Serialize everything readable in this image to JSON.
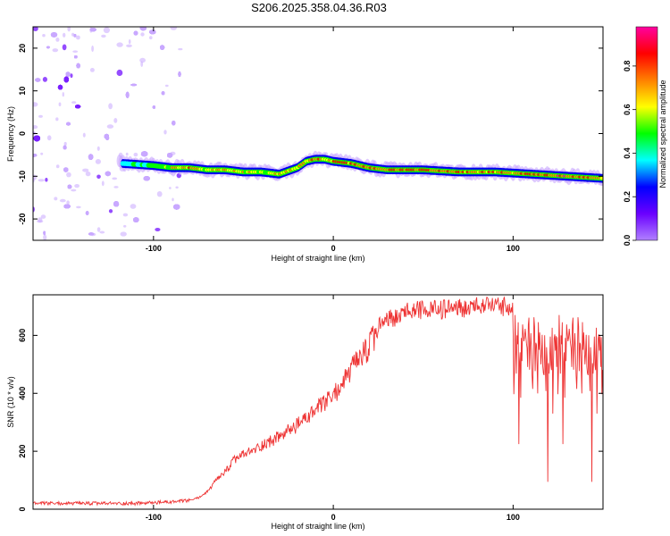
{
  "title": "S206.2025.358.04.36.R03",
  "chart_data": [
    {
      "type": "heatmap",
      "xlabel": "Height of straight line (km)",
      "ylabel": "Frequency (Hz)",
      "xlim": [
        -167,
        150
      ],
      "ylim": [
        -25,
        25
      ],
      "xticks": [
        -100,
        0,
        100
      ],
      "yticks": [
        -20,
        -10,
        0,
        10,
        20
      ],
      "colorbar": {
        "label": "Normalized spectral amplitude",
        "range": [
          0.0,
          0.98
        ],
        "ticks": [
          0.0,
          0.2,
          0.4,
          0.6,
          0.8
        ],
        "tick_labels": [
          "0.0",
          "0.2",
          "0.4",
          "0.6",
          "0.8"
        ],
        "colormap": [
          "#b080ff",
          "#6a00ff",
          "#0000ff",
          "#00ffff",
          "#00ff00",
          "#ffff00",
          "#ff8000",
          "#ff0000",
          "#ff00a0"
        ]
      },
      "noise_region_x": [
        -167,
        -85
      ],
      "trace": {
        "x": [
          -117,
          -100,
          -90,
          -80,
          -70,
          -60,
          -50,
          -40,
          -30,
          -20,
          -15,
          -10,
          -5,
          0,
          10,
          20,
          30,
          50,
          70,
          90,
          110,
          130,
          150
        ],
        "freq_hz": [
          -7,
          -7.5,
          -8,
          -8,
          -8.5,
          -8.5,
          -9,
          -9,
          -9.5,
          -8,
          -6.5,
          -6,
          -6,
          -6.5,
          -7,
          -8,
          -8.5,
          -8.5,
          -9,
          -9,
          -9.5,
          -10,
          -10.5
        ],
        "peak_amplitude": [
          0.45,
          0.5,
          0.7,
          0.85,
          0.7,
          0.85,
          0.75,
          0.7,
          0.7,
          0.75,
          0.8,
          0.85,
          0.8,
          0.85,
          0.9,
          0.85,
          0.9,
          0.95,
          0.9,
          0.85,
          0.9,
          0.95,
          0.85
        ]
      }
    },
    {
      "type": "line",
      "xlabel": "Height of straight line (km)",
      "ylabel": "SNR (10 * v/v)",
      "xlim": [
        -167,
        150
      ],
      "ylim": [
        0,
        740
      ],
      "xticks": [
        -100,
        0,
        100
      ],
      "yticks": [
        0,
        200,
        400,
        600
      ],
      "color": "#ee3333",
      "series": [
        {
          "x": [
            -167,
            -150,
            -130,
            -110,
            -90,
            -80,
            -75,
            -70,
            -65,
            -60,
            -55,
            -50,
            -45,
            -40,
            -30,
            -20,
            -10,
            0,
            10,
            20,
            25,
            30,
            40,
            50,
            60,
            70,
            80,
            90,
            95,
            100,
            110,
            120,
            130,
            140,
            150
          ],
          "y": [
            20,
            20,
            20,
            20,
            25,
            30,
            40,
            60,
            100,
            130,
            170,
            190,
            200,
            220,
            250,
            290,
            340,
            390,
            480,
            560,
            620,
            650,
            670,
            680,
            680,
            690,
            690,
            690,
            690,
            680,
            600,
            560,
            560,
            560,
            560
          ]
        }
      ]
    }
  ]
}
